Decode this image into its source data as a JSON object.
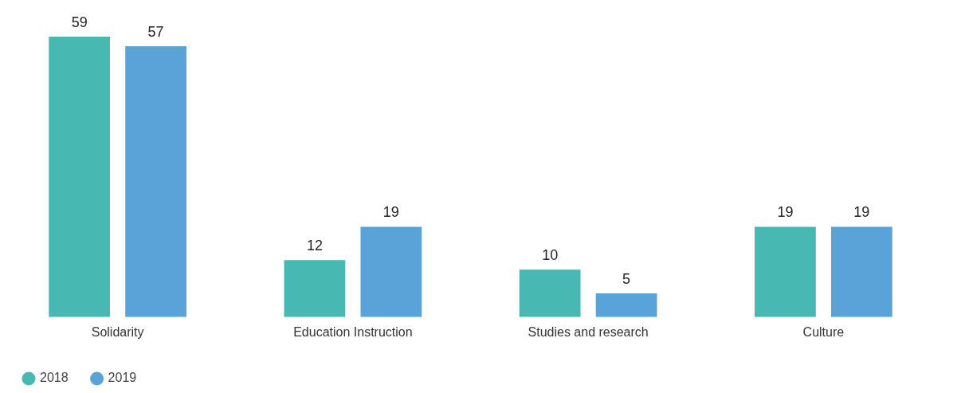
{
  "chart_data": {
    "type": "bar",
    "categories": [
      "Solidarity",
      "Education Instruction",
      "Studies and research",
      "Culture"
    ],
    "series": [
      {
        "name": "2018",
        "color": "#48b9b2",
        "values": [
          59,
          12,
          10,
          19
        ]
      },
      {
        "name": "2019",
        "color": "#5aa3d8",
        "values": [
          57,
          19,
          5,
          19
        ]
      }
    ],
    "data_labels": true,
    "legend": "bottom left",
    "grid": false
  }
}
